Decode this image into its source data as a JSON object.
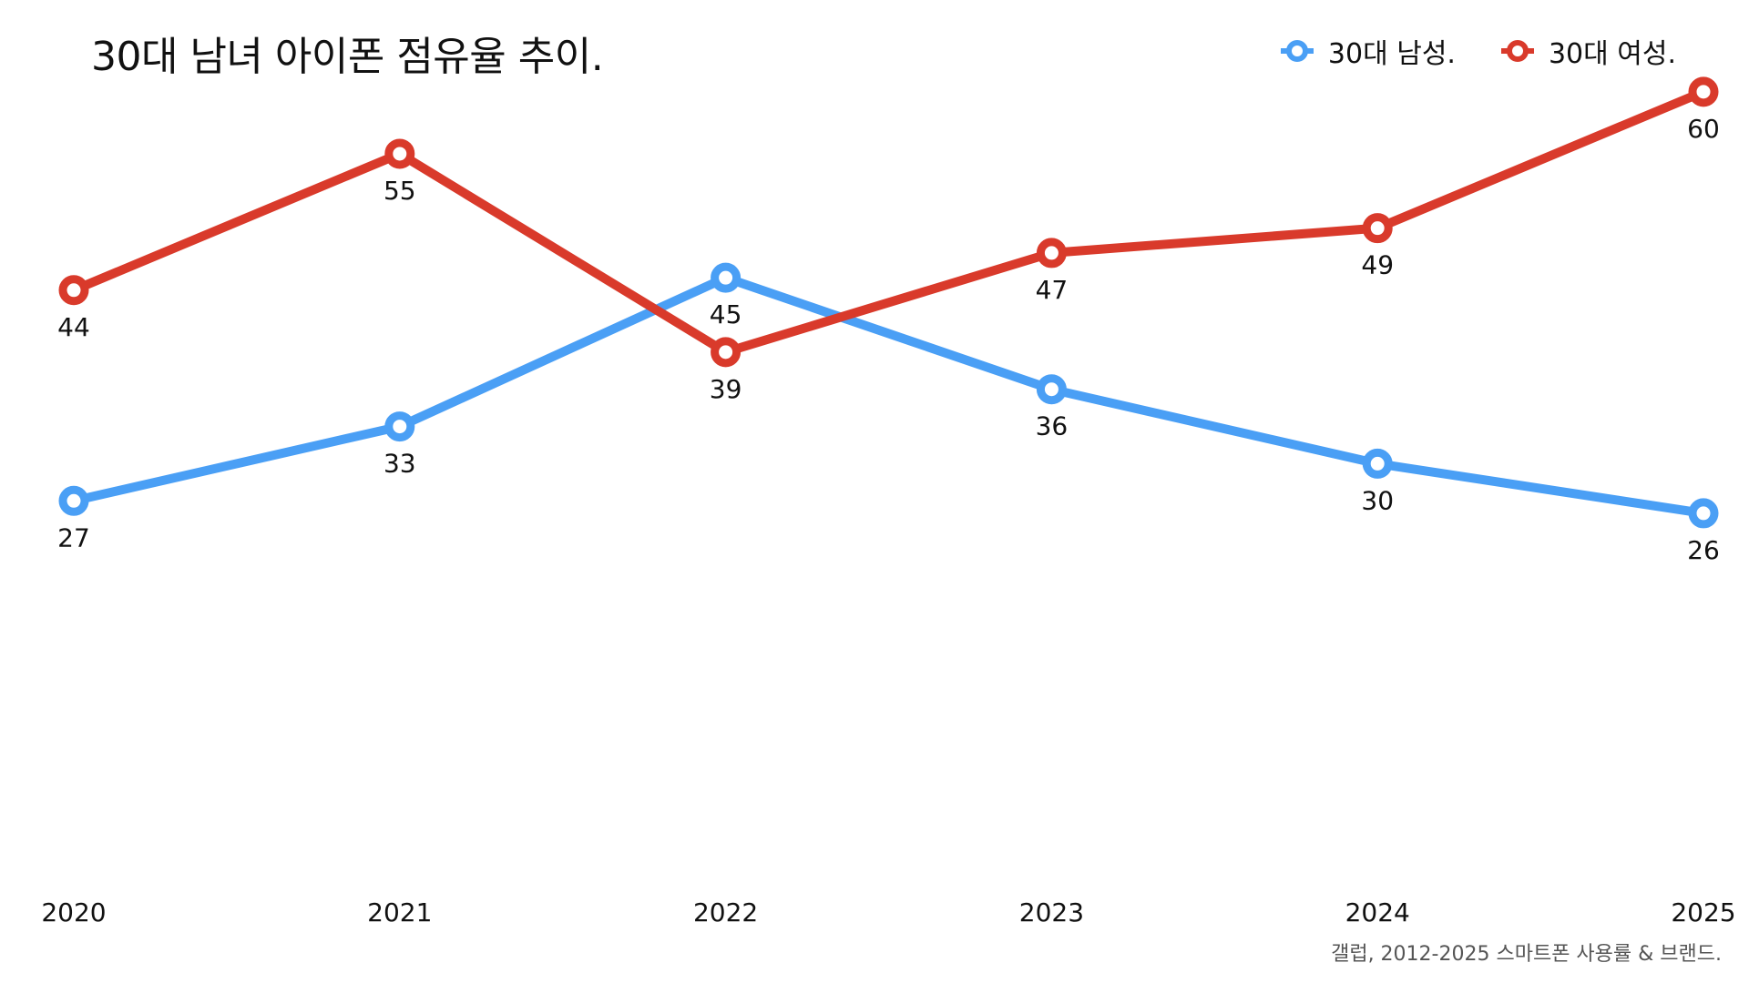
{
  "colors": {
    "male": "#4A9FF5",
    "female": "#D93A2B"
  },
  "source_note": "갤럽, 2012-2025 스마트폰 사용률 & 브랜드.",
  "chart_data": {
    "type": "line",
    "title": "30대 남녀 아이폰 점유율 추이.",
    "xlabel": "",
    "ylabel": "",
    "x": [
      "2020",
      "2021",
      "2022",
      "2023",
      "2024",
      "2025"
    ],
    "ylim": [
      0,
      63
    ],
    "grid": false,
    "legend": "top-right",
    "series": [
      {
        "name": "30대 남성.",
        "color_key": "male",
        "values": [
          27,
          33,
          45,
          36,
          30,
          26
        ]
      },
      {
        "name": "30대 여성.",
        "color_key": "female",
        "values": [
          44,
          55,
          39,
          47,
          49,
          60
        ]
      }
    ]
  }
}
